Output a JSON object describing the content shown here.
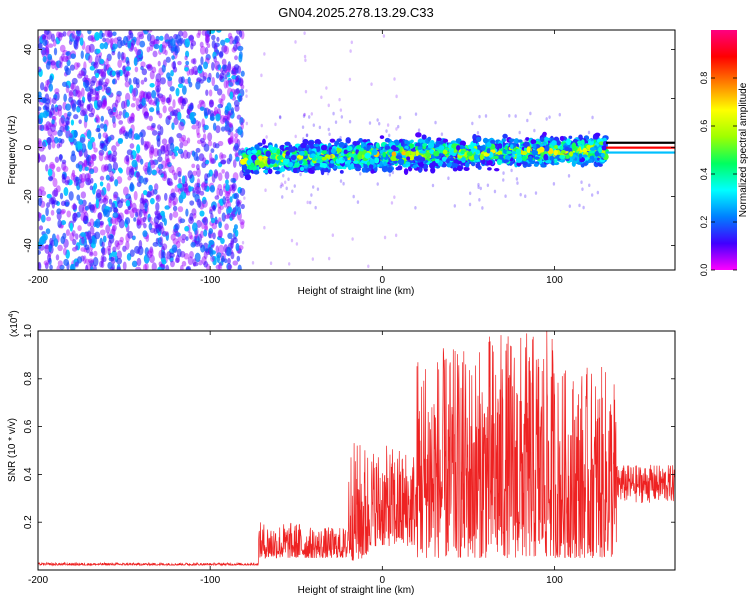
{
  "figure_title": "GN04.2025.278.13.29.C33",
  "chart_data": [
    {
      "type": "heatmap",
      "xlabel": "Height of straight line (km)",
      "ylabel": "Frequency (Hz)",
      "xlim": [
        -200,
        170
      ],
      "ylim": [
        -50,
        48
      ],
      "xticks": [
        -200,
        -100,
        0,
        100
      ],
      "yticks": [
        -40,
        -20,
        0,
        20,
        40
      ],
      "colorbar": {
        "label": "Normalized spectral amplitude",
        "range": [
          0,
          1
        ],
        "ticks": [
          0.0,
          0.2,
          0.4,
          0.6,
          0.8
        ],
        "tick_labels": [
          "0.0",
          "0.2",
          "0.4",
          "0.6",
          "0.8"
        ],
        "colormap": [
          "#ff00ff",
          "#4000ff",
          "#0080ff",
          "#00ffff",
          "#00ff60",
          "#a0ff00",
          "#ffff00",
          "#ff8000",
          "#ff0000",
          "#ff0080"
        ]
      },
      "regions": [
        {
          "name": "noise",
          "x_range": [
            -200,
            -81
          ],
          "freq_range": [
            -50,
            48
          ],
          "amplitude": [
            0.05,
            0.3
          ]
        },
        {
          "name": "signal-band",
          "x_range": [
            -81,
            130
          ],
          "freq_center_start": -6,
          "freq_center_end": -1,
          "half_width_hz": 8,
          "amplitude": [
            0.1,
            0.75
          ]
        },
        {
          "name": "constant-lines",
          "x_range": [
            130,
            170
          ],
          "freq_values": [
            2,
            0,
            -2
          ],
          "colors": [
            "#000000",
            "#ff0000",
            "#00c0ff"
          ]
        }
      ]
    },
    {
      "type": "line",
      "xlabel": "Height of straight line (km)",
      "ylabel": "SNR (10 * v/v)",
      "y_multiplier_label": "(x10",
      "y_multiplier_exponent": "4",
      "y_multiplier_close": ")",
      "xlim": [
        -200,
        170
      ],
      "ylim": [
        0,
        1.0
      ],
      "xticks": [
        -200,
        -100,
        0,
        100
      ],
      "yticks": [
        0.2,
        0.4,
        0.6,
        0.8,
        1.0
      ],
      "ytick_labels": [
        "0.2",
        "0.4",
        "0.6",
        "0.8",
        "1.0"
      ],
      "color": "#ee2222",
      "series": [
        {
          "segments": [
            {
              "x_range": [
                -200,
                -72
              ],
              "baseline": 0.02,
              "spread": 0.01
            },
            {
              "x_range": [
                -72,
                -47
              ],
              "baseline": 0.05,
              "spread": 0.15
            },
            {
              "x_range": [
                -47,
                -20
              ],
              "baseline": 0.05,
              "spread": 0.13
            },
            {
              "x_range": [
                -20,
                -8
              ],
              "baseline": 0.04,
              "spread": 0.5
            },
            {
              "x_range": [
                -8,
                20
              ],
              "baseline": 0.1,
              "spread": 0.42
            },
            {
              "x_range": [
                20,
                60
              ],
              "baseline": 0.05,
              "spread": 0.88
            },
            {
              "x_range": [
                60,
                100
              ],
              "baseline": 0.05,
              "spread": 0.95
            },
            {
              "x_range": [
                100,
                136
              ],
              "baseline": 0.05,
              "spread": 0.8
            },
            {
              "x_range": [
                136,
                170
              ],
              "baseline": 0.36,
              "spread": 0.08
            }
          ]
        }
      ]
    }
  ]
}
